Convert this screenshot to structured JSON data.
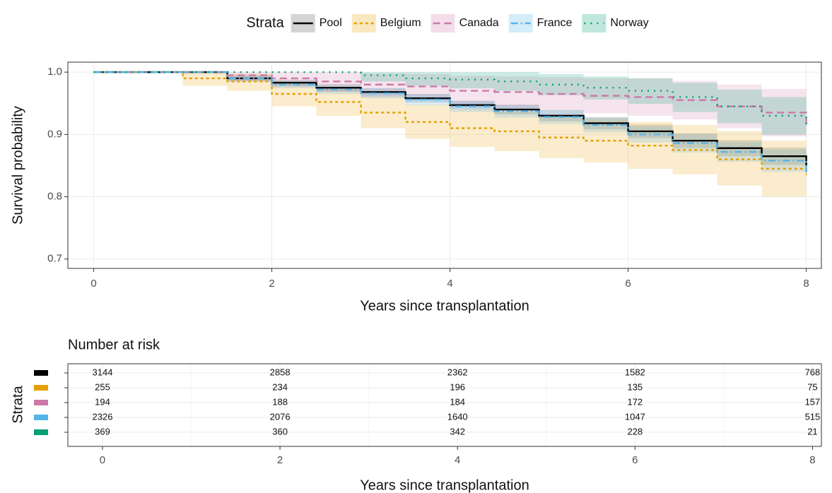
{
  "chart_data": {
    "type": "step",
    "xlabel": "Years since transplantation",
    "ylabel": "Survival probability",
    "legend_title": "Strata",
    "legend_position": "top",
    "grid": true,
    "xlim": [
      -0.29,
      8.17
    ],
    "ylim": [
      0.685,
      1.016
    ],
    "xticks": [
      0,
      2,
      4,
      6,
      8
    ],
    "yticks": [
      0.7,
      0.8,
      0.9,
      {
        "value": 1,
        "label": "1.0"
      }
    ],
    "x": [
      0,
      1,
      1.5,
      2,
      2.5,
      3,
      3.5,
      4,
      4.5,
      5,
      5.5,
      6,
      6.5,
      7,
      7.5,
      8
    ],
    "series": [
      {
        "name": "Pool",
        "color": "#000000",
        "dash": "none",
        "values": [
          1,
          1,
          0.99,
          0.983,
          0.975,
          0.968,
          0.958,
          0.947,
          0.94,
          0.93,
          0.918,
          0.905,
          0.89,
          0.878,
          0.865,
          0.85
        ],
        "lower": [
          1,
          1,
          0.986,
          0.978,
          0.969,
          0.962,
          0.951,
          0.94,
          0.932,
          0.921,
          0.908,
          0.894,
          0.878,
          0.865,
          0.851,
          0.834
        ],
        "upper": [
          1,
          1,
          0.994,
          0.988,
          0.981,
          0.974,
          0.965,
          0.954,
          0.948,
          0.939,
          0.928,
          0.916,
          0.902,
          0.891,
          0.879,
          0.866
        ]
      },
      {
        "name": "Belgium",
        "color": "#E69F00",
        "dash": "4,4",
        "values": [
          1,
          0.99,
          0.985,
          0.965,
          0.952,
          0.935,
          0.92,
          0.91,
          0.905,
          0.895,
          0.89,
          0.882,
          0.875,
          0.86,
          0.845,
          0.835
        ],
        "lower": [
          1,
          0.978,
          0.97,
          0.945,
          0.93,
          0.91,
          0.893,
          0.88,
          0.873,
          0.862,
          0.855,
          0.845,
          0.836,
          0.818,
          0.8,
          0.78
        ],
        "upper": [
          1,
          1,
          0.997,
          0.985,
          0.975,
          0.962,
          0.948,
          0.94,
          0.936,
          0.928,
          0.925,
          0.92,
          0.915,
          0.905,
          0.89,
          0.885
        ]
      },
      {
        "name": "Canada",
        "color": "#CC79A7",
        "dash": "10,6",
        "values": [
          1,
          1,
          0.995,
          0.99,
          0.985,
          0.98,
          0.977,
          0.97,
          0.968,
          0.965,
          0.962,
          0.96,
          0.955,
          0.945,
          0.935,
          0.91
        ],
        "lower": [
          1,
          1,
          0.985,
          0.976,
          0.968,
          0.96,
          0.955,
          0.946,
          0.942,
          0.938,
          0.934,
          0.93,
          0.924,
          0.91,
          0.897,
          0.867
        ],
        "upper": [
          1,
          1,
          1,
          1,
          1,
          0.998,
          0.997,
          0.994,
          0.993,
          0.992,
          0.99,
          0.99,
          0.986,
          0.98,
          0.973,
          0.955
        ]
      },
      {
        "name": "France",
        "color": "#56B4E9",
        "dash": "10,4,2,4",
        "values": [
          1,
          1,
          0.99,
          0.98,
          0.972,
          0.966,
          0.956,
          0.945,
          0.937,
          0.928,
          0.915,
          0.9,
          0.886,
          0.872,
          0.858,
          0.835
        ],
        "lower": [
          1,
          1,
          0.985,
          0.974,
          0.965,
          0.958,
          0.947,
          0.936,
          0.927,
          0.917,
          0.903,
          0.887,
          0.871,
          0.856,
          0.84,
          0.815
        ],
        "upper": [
          1,
          1,
          0.995,
          0.986,
          0.979,
          0.974,
          0.965,
          0.954,
          0.947,
          0.939,
          0.927,
          0.913,
          0.9,
          0.888,
          0.876,
          0.855
        ]
      },
      {
        "name": "Norway",
        "color": "#009E73",
        "dash": "2,7",
        "values": [
          1,
          1,
          1,
          1,
          1,
          0.995,
          0.99,
          0.988,
          0.985,
          0.98,
          0.975,
          0.97,
          0.96,
          0.945,
          0.93,
          0.91
        ],
        "lower": [
          1,
          1,
          1,
          1,
          1,
          0.985,
          0.978,
          0.974,
          0.97,
          0.963,
          0.956,
          0.949,
          0.936,
          0.918,
          0.9,
          0.875
        ],
        "upper": [
          1,
          1,
          1,
          1,
          1,
          1,
          1,
          1,
          1,
          0.997,
          0.993,
          0.99,
          0.983,
          0.972,
          0.96,
          0.945
        ]
      }
    ],
    "risk_table": {
      "title": "Number at risk",
      "ylabel": "Strata",
      "xlabel": "Years since transplantation",
      "xlim": [
        -0.39,
        8.1
      ],
      "times": [
        0,
        2,
        4,
        6,
        8
      ],
      "rows": [
        [
          3144,
          2858,
          2362,
          1582,
          768
        ],
        [
          255,
          234,
          196,
          135,
          75
        ],
        [
          194,
          188,
          184,
          172,
          157
        ],
        [
          2326,
          2076,
          1640,
          1047,
          515
        ],
        [
          369,
          360,
          342,
          228,
          21
        ]
      ]
    }
  }
}
